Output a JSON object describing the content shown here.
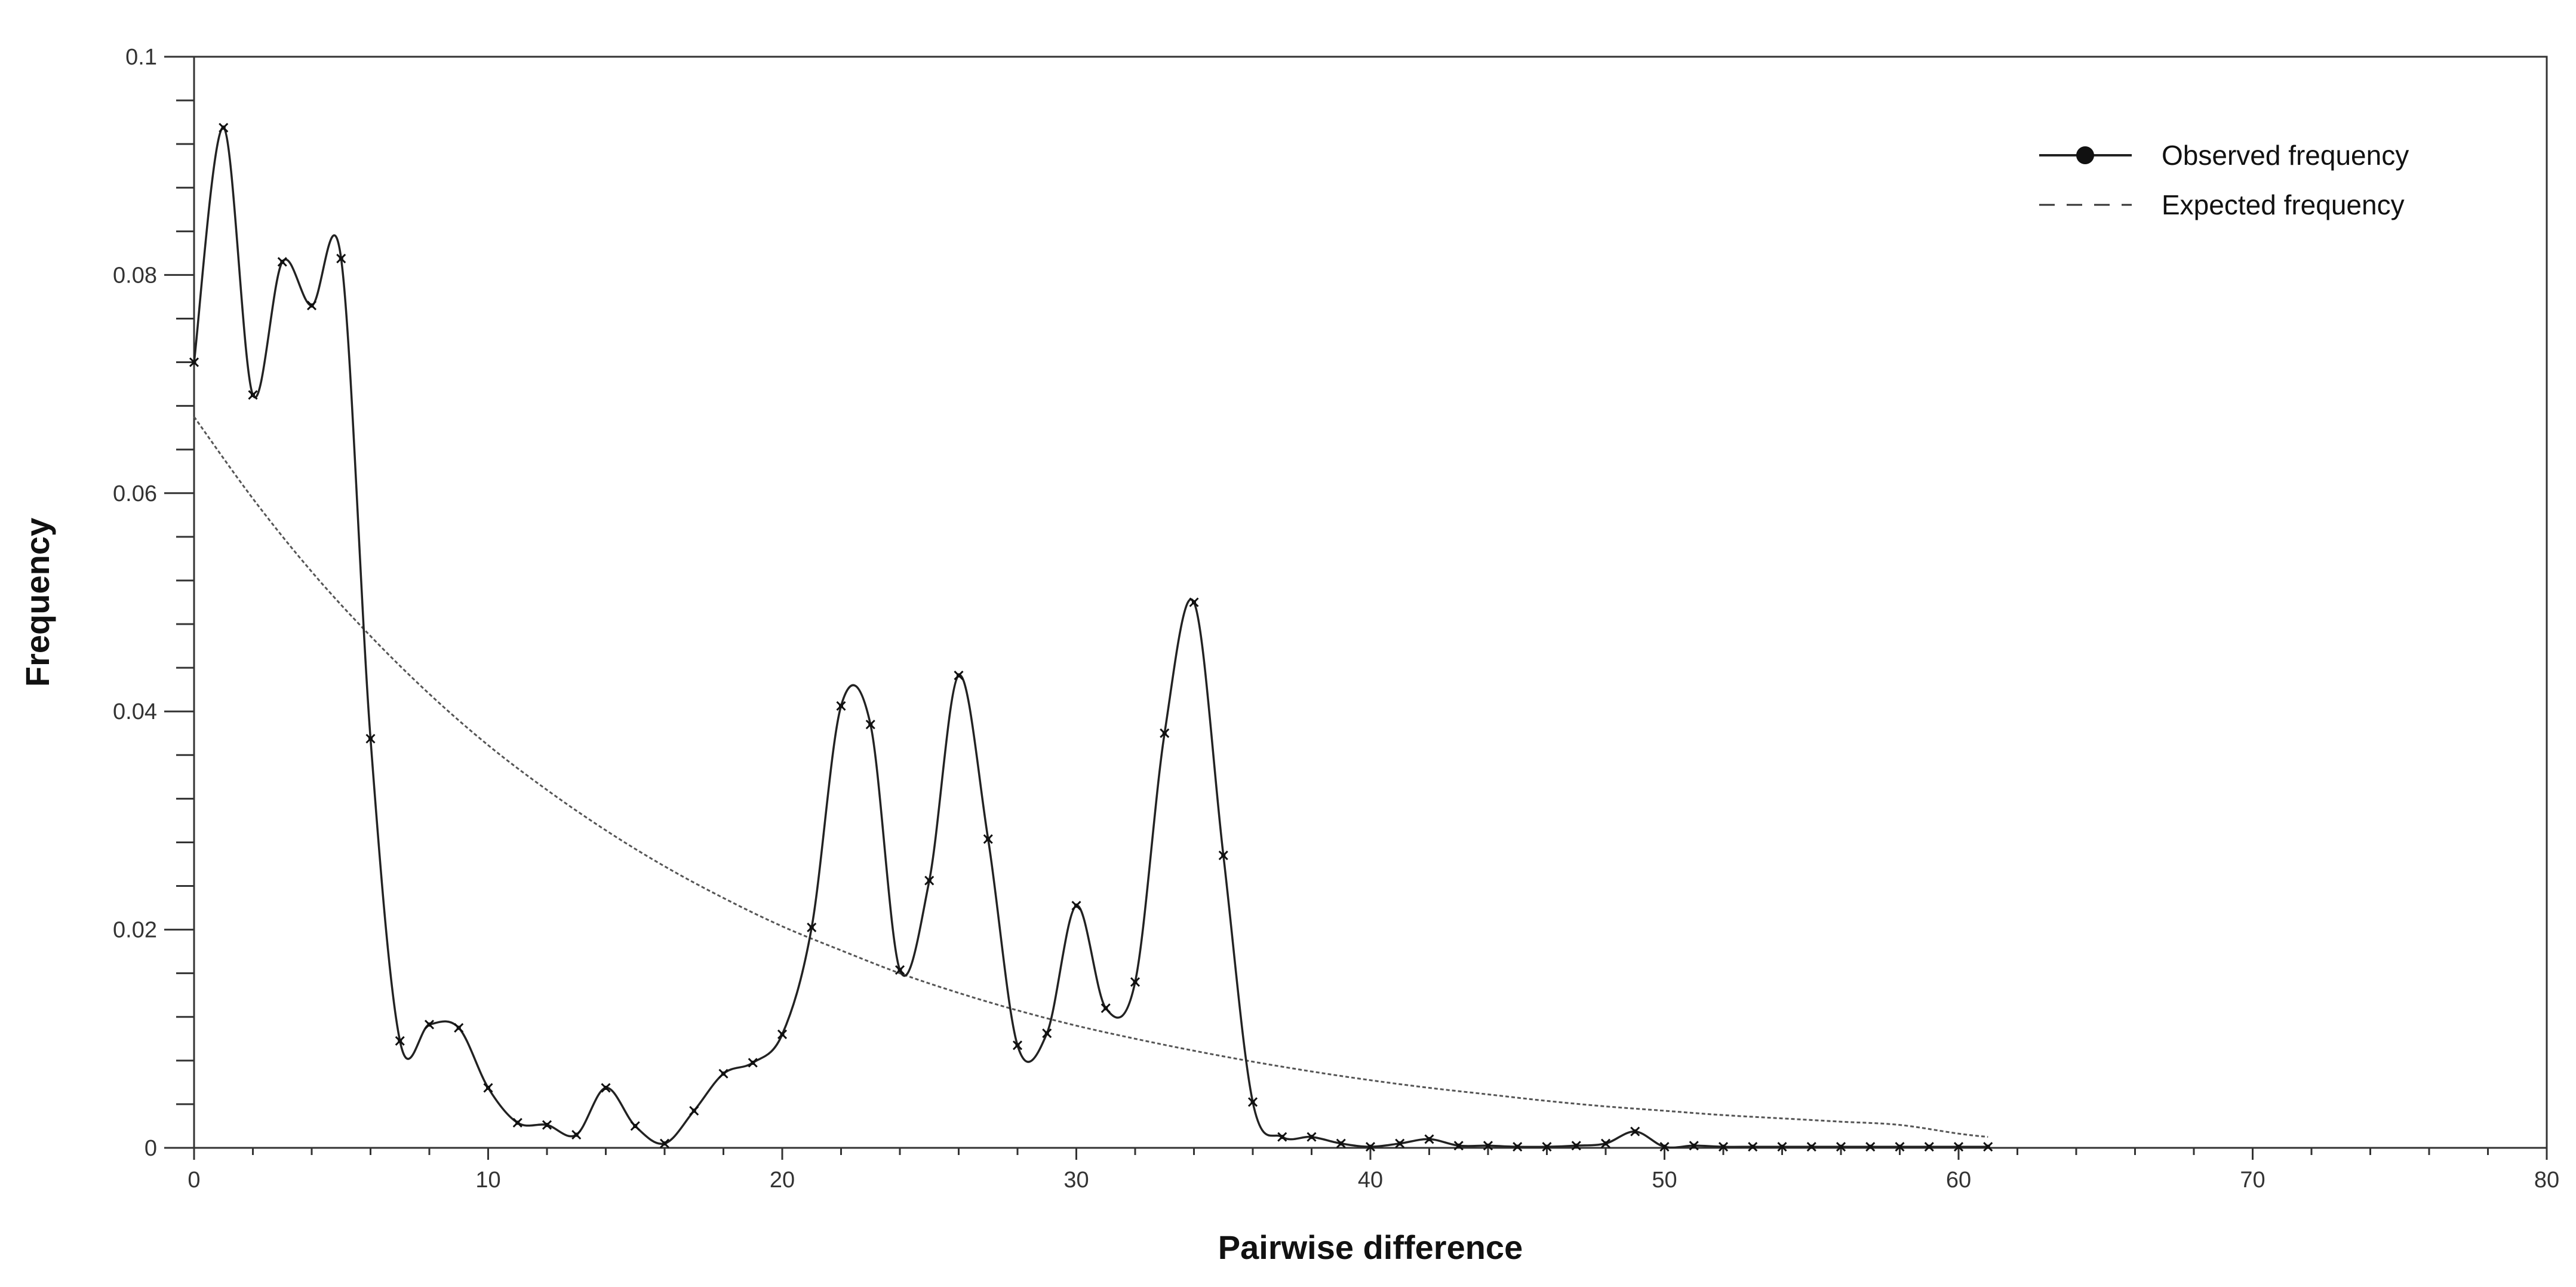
{
  "chart_data": {
    "type": "line",
    "xlabel": "Pairwise difference",
    "ylabel": "Frequency",
    "xlim": [
      0,
      80
    ],
    "ylim": [
      0,
      0.1
    ],
    "x_ticks": [
      0,
      10,
      20,
      30,
      40,
      50,
      60,
      70,
      80
    ],
    "y_ticks": [
      0,
      0.02,
      0.04,
      0.06,
      0.08,
      0.1
    ],
    "x_tick_labels": [
      "0",
      "10",
      "20",
      "30",
      "40",
      "50",
      "60",
      "70",
      "80"
    ],
    "y_tick_labels": [
      "0",
      "0.02",
      "0.04",
      "0.06",
      "0.08",
      "0.1"
    ],
    "grid": false,
    "legend_position": "top-right",
    "legend": {
      "observed": "Observed frequency",
      "expected": "Expected frequency"
    },
    "series": [
      {
        "name": "Observed frequency",
        "style": "solid-with-markers",
        "x": [
          0,
          1,
          2,
          3,
          4,
          5,
          6,
          7,
          8,
          9,
          10,
          11,
          12,
          13,
          14,
          15,
          16,
          17,
          18,
          19,
          20,
          21,
          22,
          23,
          24,
          25,
          26,
          27,
          28,
          29,
          30,
          31,
          32,
          33,
          34,
          35,
          36,
          37,
          38,
          39,
          40,
          41,
          42,
          43,
          44,
          45,
          46,
          47,
          48,
          49,
          50,
          51,
          52,
          53,
          54,
          55,
          56,
          57,
          58,
          59,
          60,
          61
        ],
        "values": [
          0.072,
          0.0935,
          0.069,
          0.0812,
          0.0772,
          0.0815,
          0.0375,
          0.0098,
          0.0113,
          0.011,
          0.0055,
          0.0023,
          0.0021,
          0.0012,
          0.0055,
          0.002,
          0.0004,
          0.0034,
          0.0068,
          0.0078,
          0.0104,
          0.0202,
          0.0405,
          0.0388,
          0.0163,
          0.0245,
          0.0433,
          0.0283,
          0.0094,
          0.0105,
          0.0222,
          0.0128,
          0.0152,
          0.038,
          0.05,
          0.0268,
          0.0042,
          0.001,
          0.001,
          0.0004,
          0.0001,
          0.0004,
          0.0008,
          0.0002,
          0.0002,
          0.0001,
          0.0001,
          0.0002,
          0.0004,
          0.0015,
          0.0001,
          0.0002,
          0.0001,
          0.0001,
          0.0001,
          0.0001,
          0.0001,
          0.0001,
          0.0001,
          0.0001,
          0.0001,
          0.0001
        ]
      },
      {
        "name": "Expected frequency",
        "style": "dashed",
        "x": [
          0,
          2,
          4,
          6,
          8,
          10,
          12,
          14,
          16,
          18,
          20,
          22,
          24,
          26,
          28,
          30,
          32,
          34,
          36,
          38,
          40,
          42,
          44,
          46,
          48,
          50,
          52,
          54,
          56,
          58,
          60,
          61
        ],
        "values": [
          0.067,
          0.0595,
          0.0528,
          0.0469,
          0.0416,
          0.0369,
          0.0328,
          0.0291,
          0.0258,
          0.0229,
          0.0203,
          0.0181,
          0.016,
          0.0142,
          0.0126,
          0.0112,
          0.01,
          0.0089,
          0.0079,
          0.007,
          0.0062,
          0.0055,
          0.0049,
          0.0043,
          0.0038,
          0.0034,
          0.003,
          0.0027,
          0.0024,
          0.0021,
          0.0013,
          0.001
        ]
      }
    ]
  },
  "colors": {
    "axis": "#333333",
    "observed_line": "#222222",
    "expected_line": "#555555",
    "background": "#ffffff"
  }
}
